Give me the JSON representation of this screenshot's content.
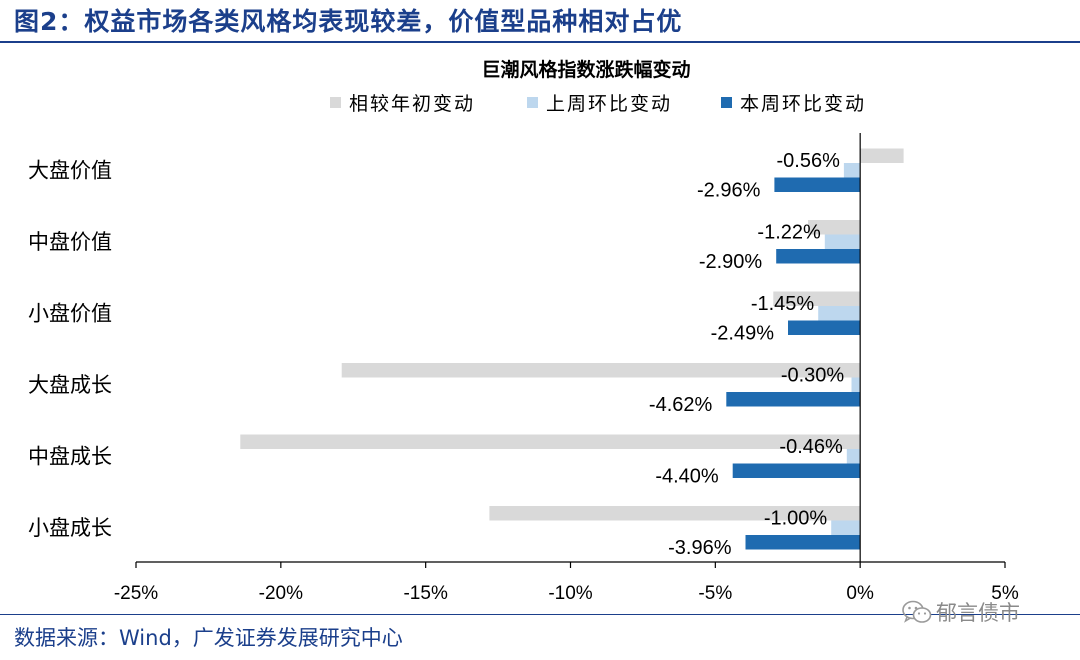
{
  "figure_title": "图2：权益市场各类风格均表现较差，价值型品种相对占优",
  "source_text": "数据来源：Wind，广发证券发展研究中心",
  "watermark": {
    "text": "郁言债市",
    "icon": "wechat-icon"
  },
  "colors": {
    "ytd": "#d9d9d9",
    "last_week": "#bdd7ee",
    "this_week": "#1f6bb0",
    "frame": "#1b3f8b"
  },
  "chart_data": {
    "type": "bar",
    "orientation": "horizontal",
    "title": "巨潮风格指数涨跌幅变动",
    "categories": [
      "大盘价值",
      "中盘价值",
      "小盘价值",
      "大盘成长",
      "中盘成长",
      "小盘成长"
    ],
    "series": [
      {
        "name": "相较年初变动",
        "values": [
          1.5,
          -1.8,
          -3.0,
          -17.9,
          -21.4,
          -12.8
        ]
      },
      {
        "name": "上周环比变动",
        "values": [
          -0.56,
          -1.22,
          -1.45,
          -0.3,
          -0.46,
          -1.0
        ]
      },
      {
        "name": "本周环比变动",
        "values": [
          -2.96,
          -2.9,
          -2.49,
          -4.62,
          -4.4,
          -3.96
        ]
      }
    ],
    "data_labels": {
      "上周环比变动": [
        "-0.56%",
        "-1.22%",
        "-1.45%",
        "-0.30%",
        "-0.46%",
        "-1.00%"
      ],
      "本周环比变动": [
        "-2.96%",
        "-2.90%",
        "-2.49%",
        "-4.62%",
        "-4.40%",
        "-3.96%"
      ]
    },
    "xlim": [
      -25,
      5
    ],
    "xticks": [
      -25,
      -20,
      -15,
      -10,
      -5,
      0,
      5
    ],
    "xtick_labels": [
      "-25%",
      "-20%",
      "-15%",
      "-10%",
      "-5%",
      "0%",
      "5%"
    ],
    "legend_position": "top",
    "grid": false
  }
}
